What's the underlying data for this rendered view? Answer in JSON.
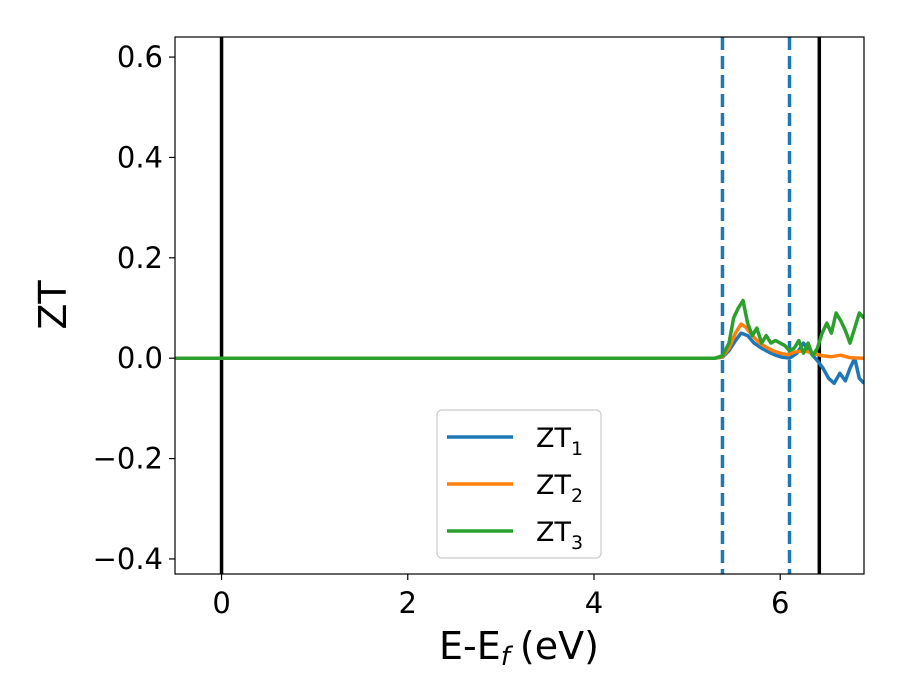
{
  "chart_data": {
    "type": "line",
    "title": "",
    "xlabel": "E-E",
    "xlabel_sub": "f",
    "xlabel_unit": "(eV)",
    "ylabel": "ZT",
    "xlim": [
      -0.5,
      6.9
    ],
    "ylim": [
      -0.43,
      0.64
    ],
    "x_ticks": [
      0,
      2,
      4,
      6
    ],
    "x_tick_labels": [
      "0",
      "2",
      "4",
      "6"
    ],
    "y_ticks": [
      -0.4,
      -0.2,
      0.0,
      0.2,
      0.4,
      0.6
    ],
    "y_tick_labels": [
      "−0.4",
      "−0.2",
      "0.0",
      "0.2",
      "0.4",
      "0.6"
    ],
    "grid": false,
    "legend_position": "lower-center",
    "vertical_lines": [
      {
        "x": 0.0,
        "style": "solid",
        "color": "#000000"
      },
      {
        "x": 6.42,
        "style": "solid",
        "color": "#000000"
      },
      {
        "x": 5.38,
        "style": "dashed",
        "color": "#1f77b4"
      },
      {
        "x": 6.1,
        "style": "dashed",
        "color": "#1f77b4"
      }
    ],
    "series": [
      {
        "name": "ZT",
        "name_sub": "1",
        "color": "#1f77b4",
        "x": [
          -0.5,
          5.3,
          5.38,
          5.45,
          5.52,
          5.58,
          5.65,
          5.72,
          5.8,
          5.88,
          5.95,
          6.02,
          6.1,
          6.18,
          6.25,
          6.32,
          6.4,
          6.46,
          6.52,
          6.58,
          6.64,
          6.7,
          6.75,
          6.8,
          6.85,
          6.9
        ],
        "values": [
          0.0,
          0.0,
          0.002,
          0.015,
          0.035,
          0.05,
          0.045,
          0.03,
          0.02,
          0.012,
          0.006,
          0.002,
          0.0,
          0.01,
          0.03,
          0.012,
          -0.005,
          -0.02,
          -0.04,
          -0.05,
          -0.03,
          -0.045,
          -0.02,
          0.0,
          -0.04,
          -0.05
        ]
      },
      {
        "name": "ZT",
        "name_sub": "2",
        "color": "#ff7f0e",
        "x": [
          -0.5,
          5.3,
          5.38,
          5.45,
          5.52,
          5.58,
          5.63,
          5.7,
          5.78,
          5.85,
          5.92,
          6.0,
          6.08,
          6.15,
          6.25,
          6.35,
          6.45,
          6.55,
          6.65,
          6.75,
          6.9
        ],
        "values": [
          0.0,
          0.0,
          0.003,
          0.02,
          0.05,
          0.068,
          0.062,
          0.045,
          0.03,
          0.022,
          0.015,
          0.01,
          0.007,
          0.012,
          0.015,
          0.01,
          0.005,
          0.003,
          0.006,
          0.001,
          0.0
        ]
      },
      {
        "name": "ZT",
        "name_sub": "3",
        "color": "#2ca02c",
        "x": [
          -0.5,
          5.3,
          5.38,
          5.45,
          5.5,
          5.55,
          5.6,
          5.65,
          5.7,
          5.75,
          5.8,
          5.85,
          5.9,
          5.95,
          6.0,
          6.05,
          6.1,
          6.15,
          6.2,
          6.25,
          6.3,
          6.35,
          6.4,
          6.45,
          6.5,
          6.55,
          6.6,
          6.65,
          6.7,
          6.75,
          6.8,
          6.85,
          6.9
        ],
        "values": [
          0.0,
          0.0,
          0.005,
          0.03,
          0.08,
          0.1,
          0.115,
          0.07,
          0.045,
          0.06,
          0.03,
          0.045,
          0.03,
          0.035,
          0.03,
          0.025,
          0.015,
          0.02,
          0.035,
          0.01,
          0.03,
          0.005,
          0.02,
          0.05,
          0.07,
          0.05,
          0.09,
          0.075,
          0.055,
          0.03,
          0.06,
          0.09,
          0.08
        ]
      }
    ]
  }
}
